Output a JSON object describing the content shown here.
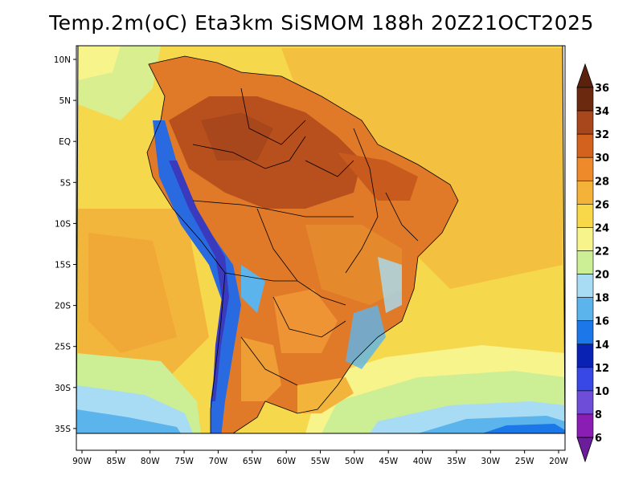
{
  "title": "Temp.2m(oC) Eta3km SiSMOM 188h 20Z21OCT2025",
  "map": {
    "lat_labels": [
      "10N",
      "5N",
      "EQ",
      "5S",
      "10S",
      "15S",
      "20S",
      "25S",
      "30S",
      "35S"
    ],
    "lat_values": [
      10,
      5,
      0,
      -5,
      -10,
      -15,
      -20,
      -25,
      -30,
      -35
    ],
    "lon_labels": [
      "90W",
      "85W",
      "80W",
      "75W",
      "70W",
      "65W",
      "60W",
      "55W",
      "50W",
      "45W",
      "40W",
      "35W",
      "30W",
      "25W",
      "20W"
    ],
    "lon_values": [
      -90,
      -85,
      -80,
      -75,
      -70,
      -65,
      -60,
      -55,
      -50,
      -45,
      -40,
      -35,
      -30,
      -25,
      -20
    ],
    "lat_range": [
      -38,
      12
    ],
    "lon_range": [
      -91,
      -20
    ],
    "colors": {
      "ocean_warm": "#F6D84C",
      "ocean_mid": "#F2B43A",
      "ocean_cool": "#C8E87A",
      "ocean_cold": "#7FC8F2",
      "land_hot": "#C85A1E",
      "land_warm": "#E07A28",
      "land_mild": "#EE9A34",
      "andes_cold": "#3A3ABE",
      "andes_blue": "#2A6AE0",
      "border": "#000000"
    }
  },
  "colorbar": {
    "labels": [
      "36",
      "34",
      "32",
      "30",
      "28",
      "26",
      "24",
      "22",
      "20",
      "18",
      "16",
      "14",
      "12",
      "10",
      "8",
      "6"
    ],
    "bins": [
      {
        "from": 34,
        "to": 36,
        "color": "#6B2A10"
      },
      {
        "from": 32,
        "to": 34,
        "color": "#A8461C"
      },
      {
        "from": 30,
        "to": 32,
        "color": "#D2621E"
      },
      {
        "from": 28,
        "to": 30,
        "color": "#EE8A2A"
      },
      {
        "from": 26,
        "to": 28,
        "color": "#F4B238"
      },
      {
        "from": 24,
        "to": 26,
        "color": "#F8D848"
      },
      {
        "from": 22,
        "to": 24,
        "color": "#F8F48C"
      },
      {
        "from": 20,
        "to": 22,
        "color": "#CCEE94"
      },
      {
        "from": 18,
        "to": 20,
        "color": "#A8DCF4"
      },
      {
        "from": 16,
        "to": 18,
        "color": "#5CB4EC"
      },
      {
        "from": 14,
        "to": 16,
        "color": "#1C78E8"
      },
      {
        "from": 12,
        "to": 14,
        "color": "#0A22B4"
      },
      {
        "from": 10,
        "to": 12,
        "color": "#3848E6"
      },
      {
        "from": 8,
        "to": 10,
        "color": "#6E4ED8"
      },
      {
        "from": 6,
        "to": 8,
        "color": "#8A1EB4"
      }
    ],
    "top_color": "#5A220C",
    "bottom_color": "#6A1E9C"
  }
}
